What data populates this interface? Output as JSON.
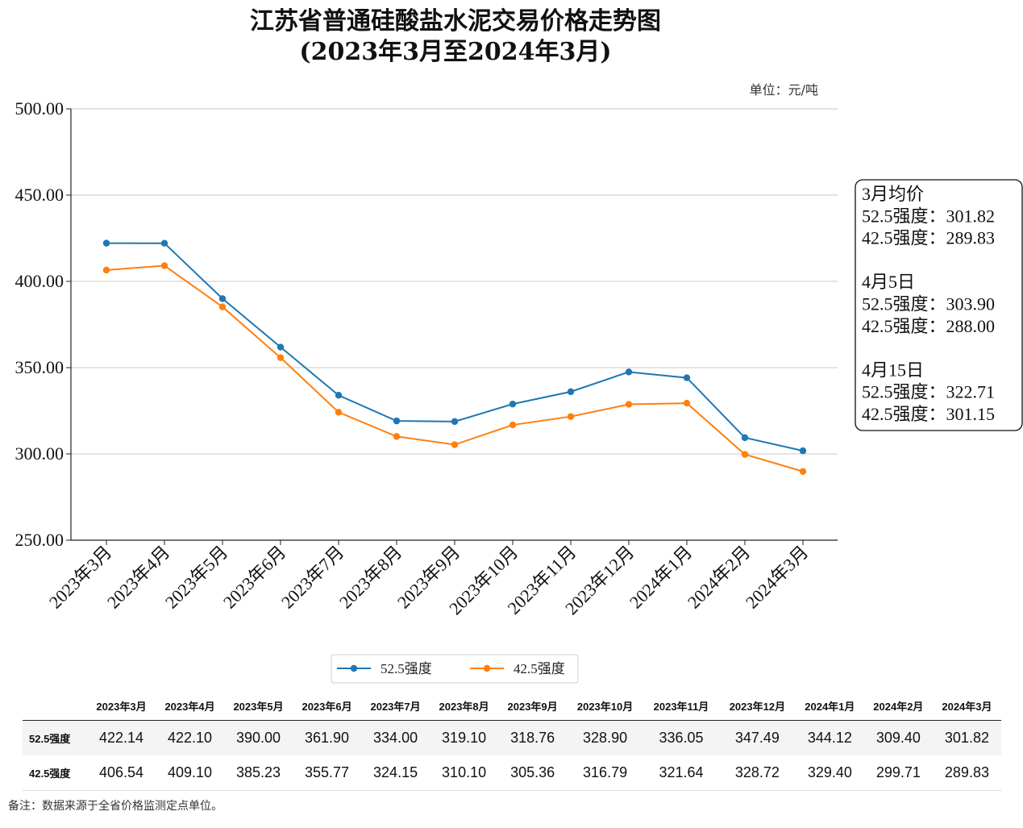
{
  "chart_data": {
    "type": "line",
    "title": "江苏省普通硅酸盐水泥交易价格走势图",
    "subtitle": "(2023年3月至2024年3月)",
    "unit_label": "单位：元/吨",
    "categories": [
      "2023年3月",
      "2023年4月",
      "2023年5月",
      "2023年6月",
      "2023年7月",
      "2023年8月",
      "2023年9月",
      "2023年10月",
      "2023年11月",
      "2023年12月",
      "2024年1月",
      "2024年2月",
      "2024年3月"
    ],
    "series": [
      {
        "name": "52.5强度",
        "color": "#1f77b4",
        "values": [
          422.14,
          422.1,
          390.0,
          361.9,
          334.0,
          319.1,
          318.76,
          328.9,
          336.05,
          347.49,
          344.12,
          309.4,
          301.82
        ]
      },
      {
        "name": "42.5强度",
        "color": "#ff7f0e",
        "values": [
          406.54,
          409.1,
          385.23,
          355.77,
          324.15,
          310.1,
          305.36,
          316.79,
          321.64,
          328.72,
          329.4,
          299.71,
          289.83
        ]
      }
    ],
    "ylim": [
      250,
      500
    ],
    "yticks": [
      "250.00",
      "300.00",
      "350.00",
      "400.00",
      "450.00",
      "500.00"
    ],
    "grid": "horizontal",
    "legend_position": "bottom-center",
    "annotation_lines": [
      "3月均价",
      "52.5强度：301.82",
      "42.5强度：289.83",
      "",
      "4月5日",
      "52.5强度：303.90",
      "42.5强度：288.00",
      "",
      "4月15日",
      "52.5强度：322.71",
      "42.5强度：301.15"
    ]
  },
  "table": {
    "headers": [
      "2023年3月",
      "2023年4月",
      "2023年5月",
      "2023年6月",
      "2023年7月",
      "2023年8月",
      "2023年9月",
      "2023年10月",
      "2023年11月",
      "2023年12月",
      "2024年1月",
      "2024年2月",
      "2024年3月"
    ],
    "rows": [
      {
        "label": "52.5强度",
        "values": [
          "422.14",
          "422.10",
          "390.00",
          "361.90",
          "334.00",
          "319.10",
          "318.76",
          "328.90",
          "336.05",
          "347.49",
          "344.12",
          "309.40",
          "301.82"
        ]
      },
      {
        "label": "42.5强度",
        "values": [
          "406.54",
          "409.10",
          "385.23",
          "355.77",
          "324.15",
          "310.10",
          "305.36",
          "316.79",
          "321.64",
          "328.72",
          "329.40",
          "299.71",
          "289.83"
        ]
      }
    ]
  },
  "footnote": "备注：数据来源于全省价格监测定点单位。"
}
